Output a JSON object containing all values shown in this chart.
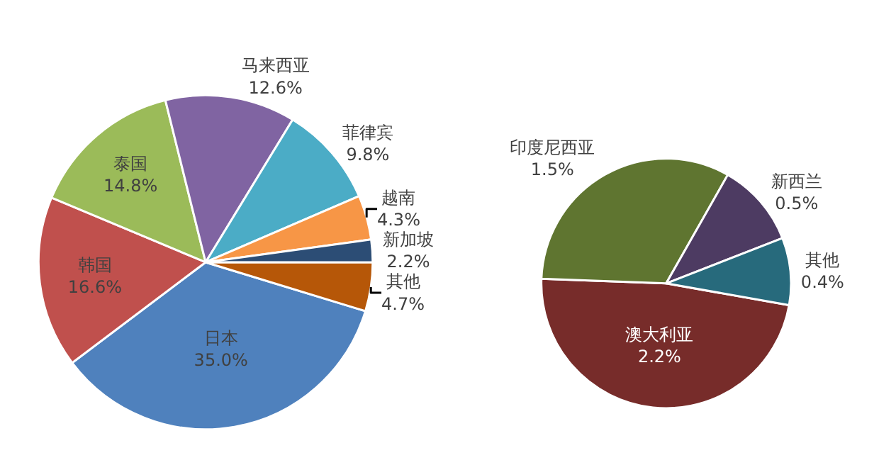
{
  "chart_data": [
    {
      "type": "pie",
      "categories": [
        "日本",
        "韩国",
        "泰国",
        "马来西亚",
        "菲律宾",
        "越南",
        "新加坡",
        "其他"
      ],
      "values": [
        35.0,
        16.6,
        14.8,
        12.6,
        9.8,
        4.3,
        2.2,
        4.7
      ],
      "value_labels": [
        "35.0%",
        "16.6%",
        "14.8%",
        "12.6%",
        "9.8%",
        "4.3%",
        "2.2%",
        "4.7%"
      ],
      "colors": [
        "#4f81bd",
        "#c0504d",
        "#9bbb59",
        "#8064a2",
        "#4bacc6",
        "#f79646",
        "#2c4d75",
        "#b65708"
      ]
    },
    {
      "type": "pie",
      "categories": [
        "澳大利亚",
        "印度尼西亚",
        "新西兰",
        "其他"
      ],
      "values": [
        2.2,
        1.5,
        0.5,
        0.4
      ],
      "value_labels": [
        "2.2%",
        "1.5%",
        "0.5%",
        "0.4%"
      ],
      "colors": [
        "#772c2a",
        "#5f7530",
        "#4d3b62",
        "#276a7c"
      ]
    }
  ]
}
